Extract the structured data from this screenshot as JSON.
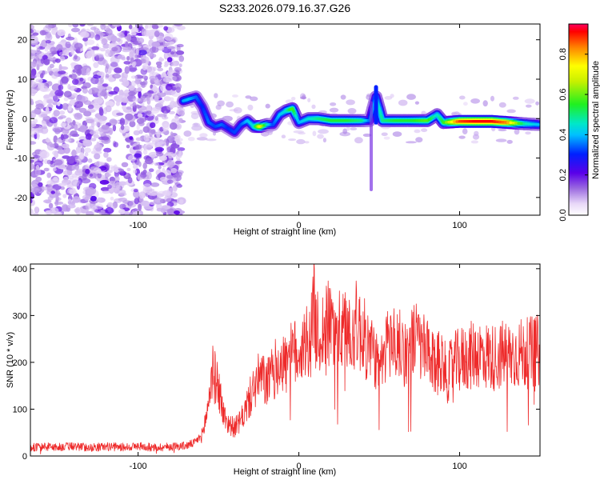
{
  "title": "S233.2026.079.16.37.G26",
  "colors": {
    "snr_line": "#ee2a2a",
    "background": "#ffffff",
    "axes": "#000000"
  },
  "chart_data": [
    {
      "type": "heatmap",
      "title": "S233.2026.079.16.37.G26",
      "xlabel": "Height of straight line (km)",
      "ylabel": "Frequency (Hz)",
      "xlim": [
        -167,
        150
      ],
      "ylim": [
        -24.5,
        24
      ],
      "x_ticks": [
        -100,
        0,
        100
      ],
      "y_ticks": [
        -20,
        -10,
        0,
        10,
        20
      ],
      "x_tick_labels": [
        "-100",
        "0",
        "100"
      ],
      "y_tick_labels": [
        "-20",
        "-10",
        "0",
        "10",
        "20"
      ],
      "grid": false,
      "colormap": "rainbow",
      "colorbar": {
        "label": "Normalized spectral amplitude",
        "range": [
          0,
          0.95
        ],
        "ticks": [
          0.0,
          0.2,
          0.4,
          0.6,
          0.8
        ],
        "tick_labels": [
          "0.0",
          "0.2",
          "0.4",
          "0.6",
          "0.8"
        ]
      },
      "noise_region": {
        "x_range": [
          -167,
          -73
        ],
        "amplitude_range": [
          0.05,
          0.2
        ]
      },
      "ridge": [
        {
          "x": -72,
          "f": 4.5,
          "a": 0.38
        },
        {
          "x": -68,
          "f": 5,
          "a": 0.4
        },
        {
          "x": -64,
          "f": 5.5,
          "a": 0.35
        },
        {
          "x": -60,
          "f": 3,
          "a": 0.3
        },
        {
          "x": -56,
          "f": -1,
          "a": 0.35
        },
        {
          "x": -52,
          "f": -2,
          "a": 0.32
        },
        {
          "x": -48,
          "f": -1.5,
          "a": 0.35
        },
        {
          "x": -44,
          "f": -2.5,
          "a": 0.3
        },
        {
          "x": -40,
          "f": -3.5,
          "a": 0.32
        },
        {
          "x": -36,
          "f": -1.5,
          "a": 0.33
        },
        {
          "x": -32,
          "f": -0.5,
          "a": 0.4
        },
        {
          "x": -28,
          "f": -2,
          "a": 0.45
        },
        {
          "x": -24,
          "f": -2,
          "a": 0.75
        },
        {
          "x": -20,
          "f": -1.5,
          "a": 0.5
        },
        {
          "x": -16,
          "f": -1.5,
          "a": 0.32
        },
        {
          "x": -12,
          "f": 1,
          "a": 0.4
        },
        {
          "x": -8,
          "f": 2,
          "a": 0.45
        },
        {
          "x": -4,
          "f": 2.5,
          "a": 0.6
        },
        {
          "x": 0,
          "f": -1,
          "a": 0.38
        },
        {
          "x": 6,
          "f": 0,
          "a": 0.45
        },
        {
          "x": 12,
          "f": 0,
          "a": 0.5
        },
        {
          "x": 20,
          "f": -0.5,
          "a": 0.55
        },
        {
          "x": 30,
          "f": -0.5,
          "a": 0.55
        },
        {
          "x": 40,
          "f": -0.5,
          "a": 0.5
        },
        {
          "x": 44,
          "f": -0.5,
          "a": 0.35
        },
        {
          "x": 48,
          "f": 5.5,
          "a": 0.4
        },
        {
          "x": 52,
          "f": -0.5,
          "a": 0.5
        },
        {
          "x": 60,
          "f": -0.5,
          "a": 0.55
        },
        {
          "x": 70,
          "f": -0.5,
          "a": 0.55
        },
        {
          "x": 80,
          "f": -0.5,
          "a": 0.6
        },
        {
          "x": 86,
          "f": 1,
          "a": 0.45
        },
        {
          "x": 90,
          "f": -1,
          "a": 0.55
        },
        {
          "x": 100,
          "f": -0.7,
          "a": 0.9
        },
        {
          "x": 110,
          "f": -0.7,
          "a": 0.95
        },
        {
          "x": 120,
          "f": -0.7,
          "a": 0.95
        },
        {
          "x": 130,
          "f": -1,
          "a": 0.85
        },
        {
          "x": 140,
          "f": -1.3,
          "a": 0.5
        },
        {
          "x": 149,
          "f": -1.5,
          "a": 0.4
        }
      ]
    },
    {
      "type": "line",
      "xlabel": "Height of straight line (km)",
      "ylabel": "SNR (10 * v/v)",
      "xlim": [
        -167,
        150
      ],
      "ylim": [
        0,
        410
      ],
      "x_ticks": [
        -100,
        0,
        100
      ],
      "y_ticks": [
        0,
        100,
        200,
        300,
        400
      ],
      "x_tick_labels": [
        "-100",
        "0",
        "100"
      ],
      "y_tick_labels": [
        "0",
        "100",
        "200",
        "300",
        "400"
      ],
      "grid": false,
      "series": [
        {
          "color": "#ee2a2a",
          "x": [
            -167,
            -160,
            -150,
            -140,
            -130,
            -120,
            -110,
            -100,
            -90,
            -80,
            -70,
            -65,
            -60,
            -57,
            -54,
            -50,
            -47,
            -44,
            -40,
            -36,
            -32,
            -28,
            -24,
            -20,
            -16,
            -12,
            -8,
            -4,
            0,
            4,
            8,
            9,
            12,
            16,
            20,
            24,
            28,
            32,
            36,
            40,
            44,
            48,
            50,
            52,
            56,
            60,
            64,
            68,
            72,
            76,
            80,
            84,
            88,
            92,
            96,
            100,
            104,
            108,
            112,
            116,
            120,
            124,
            128,
            132,
            136,
            140,
            145,
            150
          ],
          "y": [
            18,
            20,
            19,
            21,
            18,
            20,
            19,
            21,
            18,
            20,
            22,
            28,
            45,
            95,
            180,
            150,
            90,
            70,
            60,
            75,
            110,
            145,
            170,
            155,
            175,
            205,
            195,
            215,
            225,
            240,
            260,
            320,
            255,
            270,
            285,
            265,
            260,
            275,
            280,
            255,
            230,
            215,
            160,
            205,
            250,
            240,
            230,
            220,
            250,
            235,
            215,
            190,
            215,
            170,
            195,
            205,
            210,
            215,
            220,
            215,
            210,
            212,
            218,
            215,
            220,
            218,
            222,
            225
          ]
        }
      ]
    }
  ]
}
